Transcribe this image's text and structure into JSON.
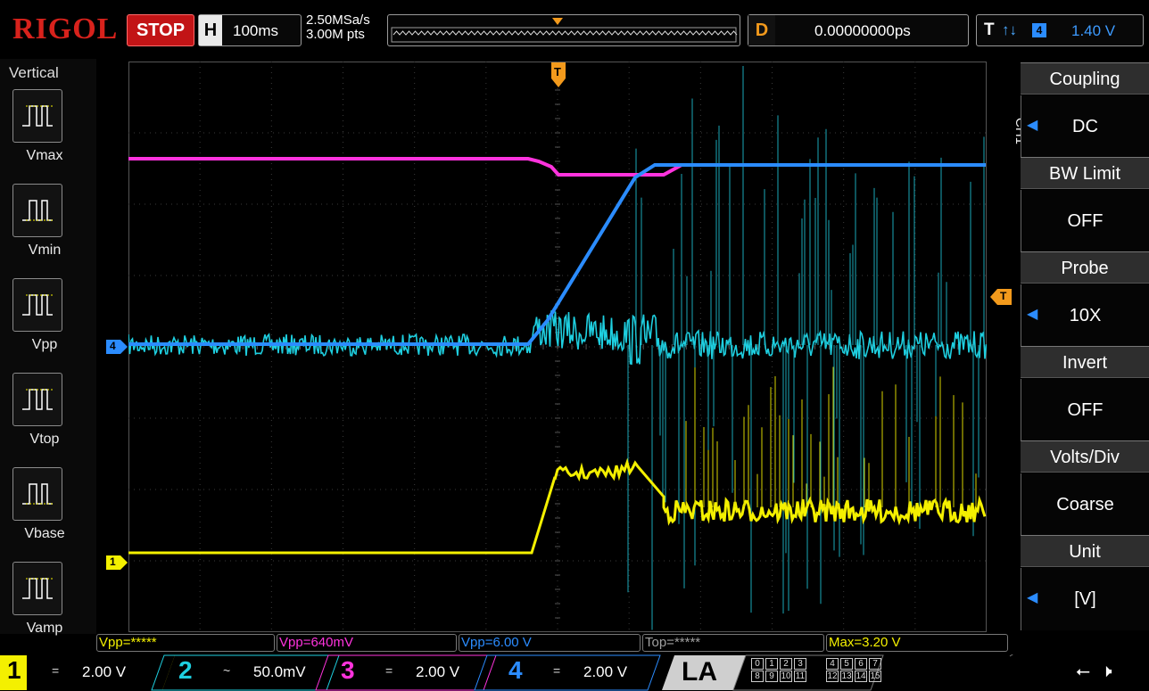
{
  "brand": "RIGOL",
  "run_state": "STOP",
  "timebase": {
    "key": "H",
    "value": "100ms"
  },
  "sample": {
    "rate": "2.50MSa/s",
    "depth": "3.00M pts"
  },
  "delay": {
    "key": "D",
    "value": "0.00000000ps"
  },
  "trigger": {
    "key": "T",
    "channel": "4",
    "level": "1.40 V"
  },
  "left_menu": {
    "title": "Vertical",
    "items": [
      {
        "label": "Vmax"
      },
      {
        "label": "Vmin"
      },
      {
        "label": "Vpp"
      },
      {
        "label": "Vtop"
      },
      {
        "label": "Vbase"
      },
      {
        "label": "Vamp"
      }
    ]
  },
  "right_menu": {
    "channel_tag": "CH1",
    "items": [
      {
        "label": "Coupling",
        "value": "DC"
      },
      {
        "label": "BW Limit",
        "value": "OFF"
      },
      {
        "label": "Probe",
        "value": "10X"
      },
      {
        "label": "Invert",
        "value": "OFF"
      },
      {
        "label": "Volts/Div",
        "value": "Coarse"
      },
      {
        "label": "Unit",
        "value": "[V]"
      }
    ]
  },
  "markers": {
    "trigger_top": "T",
    "trigger_right": "T",
    "ch4": "4",
    "ch1": "1"
  },
  "measurements": [
    {
      "text": "Vpp=*****",
      "color": "#f4f000"
    },
    {
      "text": "Vpp=640mV",
      "color": "#ff33dd"
    },
    {
      "text": "Vpp=6.00 V",
      "color": "#2b8cff"
    },
    {
      "text": "Top=*****",
      "color": "#a0a0a0"
    },
    {
      "text": "Max=3.20 V",
      "color": "#f4f000"
    }
  ],
  "channels": [
    {
      "num": "1",
      "coupling": "=",
      "scale": "2.00 V",
      "color": "#f4f000"
    },
    {
      "num": "2",
      "coupling": "~",
      "scale": "50.0mV",
      "color": "#1ecfe0"
    },
    {
      "num": "3",
      "coupling": "=",
      "scale": "2.00 V",
      "color": "#ff33dd"
    },
    {
      "num": "4",
      "coupling": "=",
      "scale": "2.00 V",
      "color": "#2b8cff"
    }
  ],
  "la": {
    "label": "LA",
    "row1": [
      "0",
      "1",
      "2",
      "3",
      "4",
      "5",
      "6",
      "7"
    ],
    "row2": [
      "8",
      "9",
      "10",
      "11",
      "12",
      "13",
      "14",
      "15"
    ]
  },
  "colors": {
    "ch1": "#f4f000",
    "ch2": "#1ecfe0",
    "ch3": "#ff33dd",
    "ch4": "#2b8cff",
    "trigger": "#f39a1c",
    "stop": "#c21416"
  },
  "icons": {
    "usb": "usb-icon",
    "sound": "speaker-mute-icon"
  }
}
